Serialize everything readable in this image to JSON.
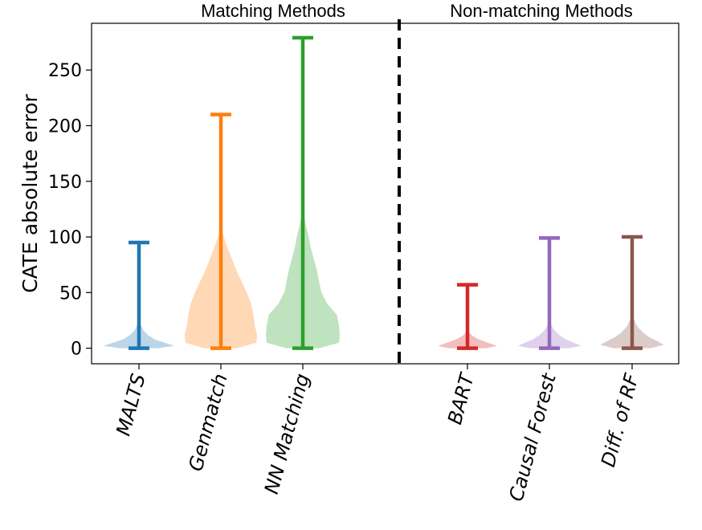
{
  "chart_data": {
    "type": "violin",
    "title": "",
    "ylabel": "CATE absolute error",
    "xlabel": "",
    "ylim": [
      -14,
      292
    ],
    "yticks": [
      0,
      50,
      100,
      150,
      200,
      250
    ],
    "grid": false,
    "groups": [
      {
        "label": "Matching Methods"
      },
      {
        "label": "Non-matching Methods"
      }
    ],
    "categories": [
      "MALTS",
      "Genmatch",
      "NN Matching",
      "BART",
      "Causal Forest",
      "Diff. of RF"
    ],
    "series": [
      {
        "category": "MALTS",
        "color": "#1f77b4",
        "min": 0,
        "max": 95,
        "density": [
          {
            "y": 0,
            "w": 0.5
          },
          {
            "y": 2,
            "w": 0.96
          },
          {
            "y": 5,
            "w": 0.7
          },
          {
            "y": 8,
            "w": 0.42
          },
          {
            "y": 12,
            "w": 0.24
          },
          {
            "y": 16,
            "w": 0.12
          },
          {
            "y": 21,
            "w": 0.05
          },
          {
            "y": 26,
            "w": 0.02
          },
          {
            "y": 30,
            "w": 0.005
          }
        ]
      },
      {
        "category": "Genmatch",
        "color": "#ff7f0e",
        "min": 0,
        "max": 210,
        "density": [
          {
            "y": 0,
            "w": 0.44
          },
          {
            "y": 5,
            "w": 0.96
          },
          {
            "y": 12,
            "w": 0.98
          },
          {
            "y": 20,
            "w": 0.92
          },
          {
            "y": 30,
            "w": 0.88
          },
          {
            "y": 40,
            "w": 0.82
          },
          {
            "y": 50,
            "w": 0.7
          },
          {
            "y": 60,
            "w": 0.56
          },
          {
            "y": 70,
            "w": 0.42
          },
          {
            "y": 80,
            "w": 0.3
          },
          {
            "y": 90,
            "w": 0.18
          },
          {
            "y": 100,
            "w": 0.08
          },
          {
            "y": 108,
            "w": 0.02
          },
          {
            "y": 112,
            "w": 0.005
          }
        ]
      },
      {
        "category": "NN Matching",
        "color": "#2ca02c",
        "min": 0,
        "max": 279,
        "density": [
          {
            "y": 0,
            "w": 0.44
          },
          {
            "y": 5,
            "w": 0.98
          },
          {
            "y": 12,
            "w": 1.0
          },
          {
            "y": 20,
            "w": 0.98
          },
          {
            "y": 30,
            "w": 0.92
          },
          {
            "y": 40,
            "w": 0.66
          },
          {
            "y": 50,
            "w": 0.5
          },
          {
            "y": 60,
            "w": 0.44
          },
          {
            "y": 70,
            "w": 0.38
          },
          {
            "y": 80,
            "w": 0.3
          },
          {
            "y": 90,
            "w": 0.22
          },
          {
            "y": 100,
            "w": 0.16
          },
          {
            "y": 110,
            "w": 0.09
          },
          {
            "y": 118,
            "w": 0.04
          },
          {
            "y": 124,
            "w": 0.005
          }
        ]
      },
      {
        "category": "BART",
        "color": "#d62728",
        "min": 0,
        "max": 57,
        "density": [
          {
            "y": 0,
            "w": 0.5
          },
          {
            "y": 2,
            "w": 0.8
          },
          {
            "y": 5,
            "w": 0.55
          },
          {
            "y": 8,
            "w": 0.3
          },
          {
            "y": 11,
            "w": 0.14
          },
          {
            "y": 14,
            "w": 0.05
          },
          {
            "y": 17,
            "w": 0.01
          }
        ]
      },
      {
        "category": "Causal Forest",
        "color": "#9467bd",
        "min": 0,
        "max": 99,
        "density": [
          {
            "y": 0,
            "w": 0.5
          },
          {
            "y": 2,
            "w": 0.86
          },
          {
            "y": 5,
            "w": 0.66
          },
          {
            "y": 8,
            "w": 0.44
          },
          {
            "y": 12,
            "w": 0.26
          },
          {
            "y": 16,
            "w": 0.14
          },
          {
            "y": 20,
            "w": 0.06
          },
          {
            "y": 24,
            "w": 0.02
          },
          {
            "y": 27,
            "w": 0.005
          }
        ]
      },
      {
        "category": "Diff. of RF",
        "color": "#8c564b",
        "min": 0,
        "max": 100,
        "density": [
          {
            "y": 0,
            "w": 0.5
          },
          {
            "y": 3,
            "w": 0.86
          },
          {
            "y": 6,
            "w": 0.7
          },
          {
            "y": 10,
            "w": 0.46
          },
          {
            "y": 14,
            "w": 0.3
          },
          {
            "y": 18,
            "w": 0.18
          },
          {
            "y": 22,
            "w": 0.1
          },
          {
            "y": 26,
            "w": 0.05
          },
          {
            "y": 30,
            "w": 0.02
          },
          {
            "y": 34,
            "w": 0.005
          }
        ]
      }
    ]
  }
}
